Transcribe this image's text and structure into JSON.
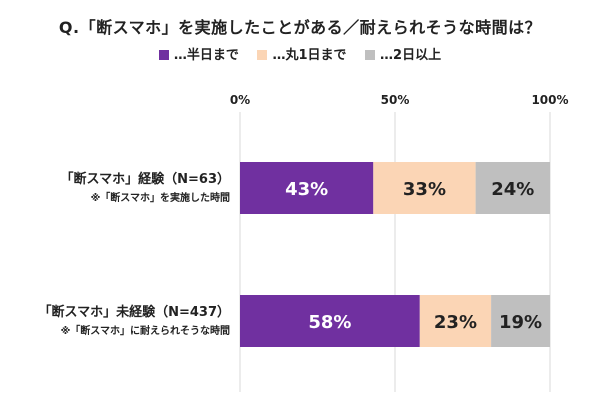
{
  "chart_data": {
    "type": "bar",
    "orientation": "horizontal",
    "stacked": true,
    "title": "Q.「断スマホ」を実施したことがある／耐えられそうな時間は？",
    "categories": [
      {
        "label": "「断スマホ」経験（N=63）",
        "sublabel": "※「断スマホ」を実施した時間"
      },
      {
        "label": "「断スマホ」未経験（N=437）",
        "sublabel": "※「断スマホ」に耐えられそうな時間"
      }
    ],
    "series": [
      {
        "name": "…半日まで",
        "color": "#7030a0",
        "label_color": "#ffffff",
        "values": [
          43,
          58
        ]
      },
      {
        "name": "…丸1日まで",
        "color": "#fbd5b5",
        "label_color": "#222222",
        "values": [
          33,
          23
        ]
      },
      {
        "name": "…2日以上",
        "color": "#bfbfbf",
        "label_color": "#222222",
        "values": [
          24,
          19
        ]
      }
    ],
    "value_suffix": "%",
    "xlim": [
      0,
      100
    ],
    "xticks": [
      "0%",
      "50%",
      "100%"
    ],
    "grid": true,
    "legend_position": "top"
  }
}
